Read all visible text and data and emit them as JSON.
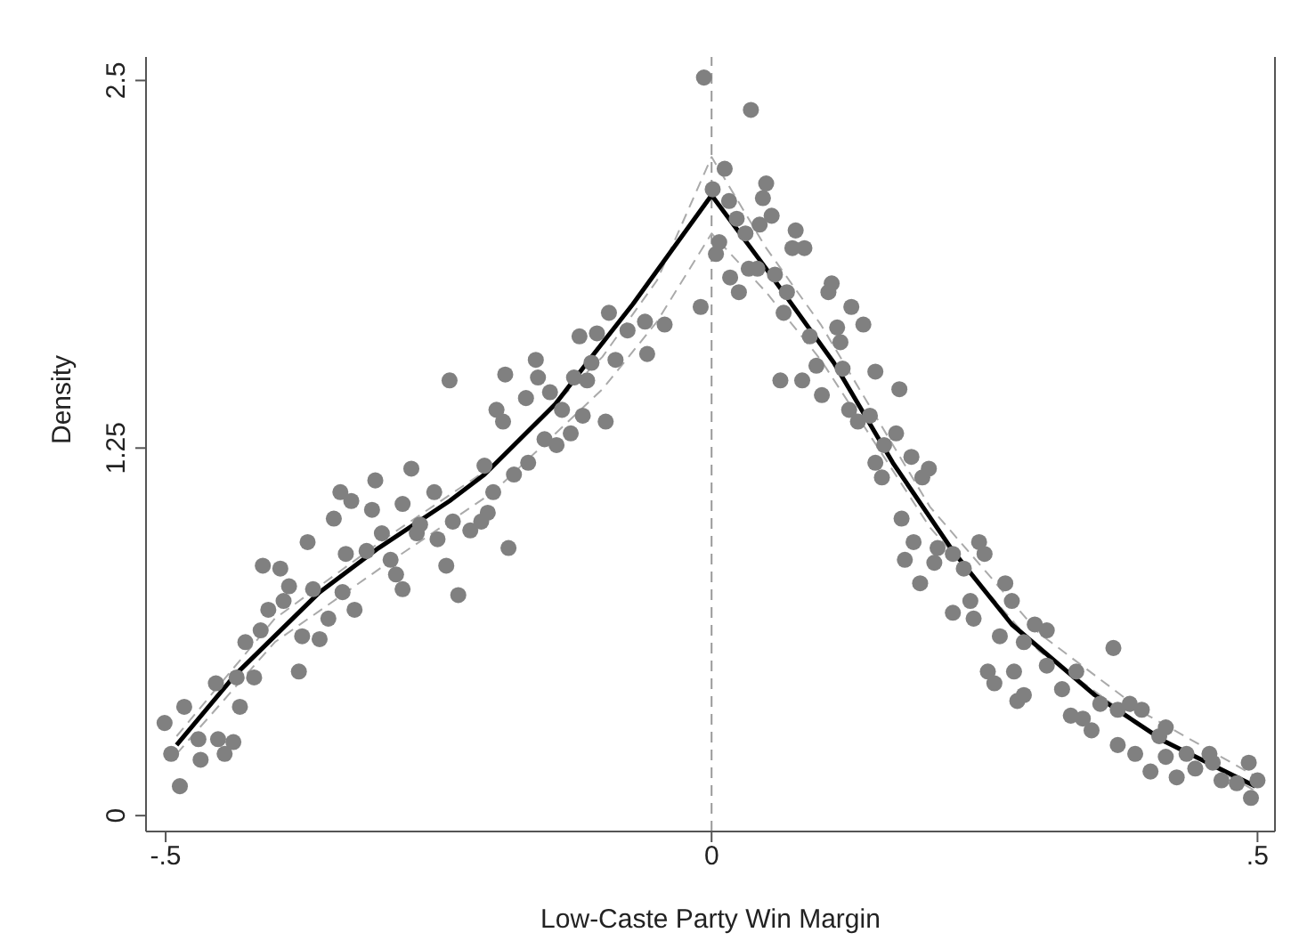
{
  "chart_data": {
    "type": "scatter",
    "xlabel": "Low-Caste Party Win Margin",
    "ylabel": "Density",
    "xlim": [
      -0.518,
      0.516
    ],
    "ylim": [
      -0.054,
      2.58
    ],
    "xticks": [
      {
        "value": -0.5,
        "label": "-.5"
      },
      {
        "value": 0,
        "label": "0"
      },
      {
        "value": 0.5,
        "label": ".5"
      }
    ],
    "yticks": [
      0,
      1.25,
      2.5
    ],
    "ref_lines": [
      {
        "axis": "x",
        "value": 0,
        "color": "#999999",
        "line_style": "dashed"
      }
    ],
    "series": [
      {
        "marker": "circle",
        "color": "#808080",
        "x": [
          -0.501,
          -0.483,
          -0.495,
          -0.487,
          -0.468,
          -0.47,
          -0.452,
          -0.438,
          -0.446,
          -0.454,
          -0.435,
          -0.432,
          -0.419,
          -0.427,
          -0.413,
          -0.411,
          -0.395,
          -0.387,
          -0.406,
          -0.392,
          -0.378,
          -0.375,
          -0.359,
          -0.365,
          -0.351,
          -0.338,
          -0.327,
          -0.37,
          -0.346,
          -0.34,
          -0.33,
          -0.311,
          -0.308,
          -0.275,
          -0.335,
          -0.316,
          -0.302,
          -0.294,
          -0.283,
          -0.289,
          -0.27,
          -0.283,
          -0.267,
          -0.251,
          -0.254,
          -0.243,
          -0.232,
          -0.237,
          -0.221,
          -0.211,
          -0.205,
          -0.2,
          -0.186,
          -0.208,
          -0.24,
          -0.181,
          -0.168,
          -0.197,
          -0.191,
          -0.189,
          -0.17,
          -0.161,
          -0.159,
          -0.148,
          -0.153,
          -0.142,
          -0.129,
          -0.137,
          -0.118,
          -0.126,
          -0.114,
          -0.097,
          -0.121,
          -0.105,
          -0.11,
          -0.088,
          -0.094,
          -0.077,
          -0.059,
          -0.061,
          -0.043,
          -0.01,
          -0.007,
          0.036,
          0.012,
          0.001,
          0.016,
          0.007,
          0.004,
          0.023,
          0.031,
          0.05,
          0.047,
          0.055,
          0.044,
          0.034,
          0.042,
          0.017,
          0.025,
          0.058,
          0.069,
          0.066,
          0.077,
          0.074,
          0.085,
          0.11,
          0.107,
          0.128,
          0.139,
          0.115,
          0.118,
          0.09,
          0.096,
          0.063,
          0.083,
          0.101,
          0.12,
          0.15,
          0.172,
          0.126,
          0.134,
          0.145,
          0.169,
          0.15,
          0.158,
          0.156,
          0.183,
          0.199,
          0.193,
          0.174,
          0.185,
          0.177,
          0.191,
          0.207,
          0.204,
          0.221,
          0.245,
          0.25,
          0.231,
          0.269,
          0.275,
          0.237,
          0.221,
          0.24,
          0.296,
          0.307,
          0.264,
          0.286,
          0.253,
          0.259,
          0.277,
          0.286,
          0.28,
          0.307,
          0.321,
          0.334,
          0.329,
          0.34,
          0.348,
          0.356,
          0.368,
          0.372,
          0.383,
          0.394,
          0.372,
          0.388,
          0.402,
          0.41,
          0.416,
          0.416,
          0.426,
          0.435,
          0.443,
          0.456,
          0.459,
          0.467,
          0.481,
          0.492,
          0.5,
          0.494
        ],
        "values": [
          0.315,
          0.37,
          0.21,
          0.1,
          0.19,
          0.26,
          0.26,
          0.25,
          0.21,
          0.45,
          0.47,
          0.37,
          0.47,
          0.59,
          0.63,
          0.85,
          0.84,
          0.78,
          0.7,
          0.73,
          0.49,
          0.61,
          0.6,
          0.77,
          0.67,
          0.76,
          0.7,
          0.93,
          1.01,
          1.1,
          1.07,
          1.04,
          1.14,
          1.18,
          0.89,
          0.9,
          0.96,
          0.87,
          0.77,
          0.82,
          0.96,
          1.06,
          0.99,
          0.94,
          1.1,
          0.85,
          0.75,
          1.0,
          0.97,
          1.0,
          1.03,
          1.1,
          0.91,
          1.19,
          1.48,
          1.16,
          1.2,
          1.38,
          1.34,
          1.5,
          1.42,
          1.55,
          1.49,
          1.44,
          1.28,
          1.26,
          1.3,
          1.38,
          1.36,
          1.49,
          1.48,
          1.34,
          1.63,
          1.64,
          1.54,
          1.55,
          1.71,
          1.65,
          1.57,
          1.68,
          1.67,
          1.73,
          2.51,
          2.4,
          2.2,
          2.13,
          2.09,
          1.95,
          1.91,
          2.03,
          1.98,
          2.15,
          2.1,
          2.04,
          2.01,
          1.86,
          1.86,
          1.83,
          1.78,
          1.84,
          1.78,
          1.71,
          1.99,
          1.93,
          1.93,
          1.81,
          1.78,
          1.73,
          1.67,
          1.66,
          1.61,
          1.63,
          1.53,
          1.48,
          1.48,
          1.43,
          1.52,
          1.51,
          1.45,
          1.38,
          1.34,
          1.36,
          1.3,
          1.2,
          1.26,
          1.15,
          1.22,
          1.18,
          1.15,
          1.01,
          0.93,
          0.87,
          0.79,
          0.91,
          0.86,
          0.89,
          0.93,
          0.89,
          0.84,
          0.79,
          0.73,
          0.73,
          0.69,
          0.67,
          0.65,
          0.63,
          0.61,
          0.59,
          0.49,
          0.45,
          0.49,
          0.41,
          0.39,
          0.51,
          0.43,
          0.49,
          0.34,
          0.33,
          0.29,
          0.38,
          0.57,
          0.36,
          0.38,
          0.36,
          0.24,
          0.21,
          0.15,
          0.27,
          0.3,
          0.2,
          0.13,
          0.21,
          0.16,
          0.21,
          0.18,
          0.12,
          0.11,
          0.18,
          0.12,
          0.06
        ]
      },
      {
        "type": "line",
        "marker": "none",
        "color": "#aaaaaa",
        "line_style": "dashed",
        "x": [
          -0.49,
          -0.4,
          -0.3,
          -0.2,
          -0.1,
          -0.05,
          0,
          0.05,
          0.1,
          0.2,
          0.3,
          0.4,
          0.5
        ],
        "values": [
          0.27,
          0.67,
          0.94,
          1.19,
          1.56,
          1.82,
          2.24,
          1.93,
          1.67,
          1.05,
          0.62,
          0.34,
          0.13
        ]
      },
      {
        "type": "line",
        "marker": "none",
        "color": "#aaaaaa",
        "line_style": "dashed",
        "x": [
          -0.49,
          -0.4,
          -0.3,
          -0.2,
          -0.1,
          -0.05,
          0,
          0.05,
          0.1,
          0.2,
          0.3,
          0.4,
          0.5
        ],
        "values": [
          0.21,
          0.59,
          0.85,
          1.1,
          1.45,
          1.68,
          1.98,
          1.78,
          1.55,
          0.98,
          0.56,
          0.29,
          0.08
        ]
      },
      {
        "type": "line",
        "marker": "none",
        "color": "#000000",
        "line_style": "solid",
        "x": [
          -0.49,
          -0.436,
          -0.359,
          -0.305,
          -0.24,
          -0.208,
          -0.143,
          -0.11,
          -0.072,
          0,
          0.052,
          0.112,
          0.166,
          0.221,
          0.275,
          0.351,
          0.416,
          0.498
        ],
        "values": [
          0.24,
          0.48,
          0.76,
          0.91,
          1.07,
          1.16,
          1.4,
          1.56,
          1.74,
          2.11,
          1.85,
          1.54,
          1.2,
          0.9,
          0.65,
          0.41,
          0.25,
          0.1
        ]
      }
    ]
  }
}
